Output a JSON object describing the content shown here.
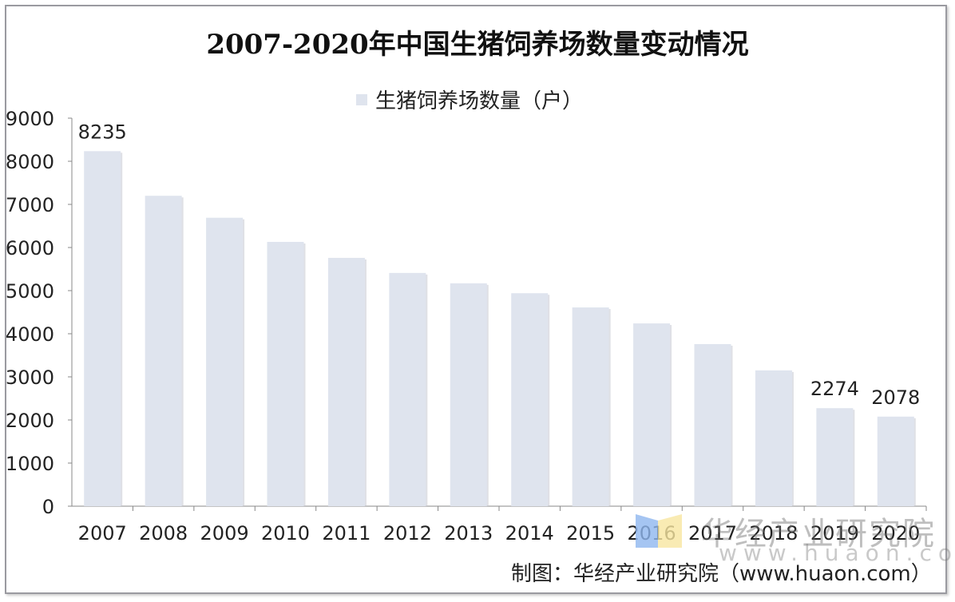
{
  "chart_data": {
    "type": "bar",
    "title": "2007-2020年中国生猪饲养场数量变动情况",
    "legend": [
      "生猪饲养场数量（户）"
    ],
    "legend_placement": "top",
    "categories": [
      "2007",
      "2008",
      "2009",
      "2010",
      "2011",
      "2012",
      "2013",
      "2014",
      "2015",
      "2016",
      "2017",
      "2018",
      "2019",
      "2020"
    ],
    "series": [
      {
        "name": "生猪饲养场数量（户）",
        "values": [
          8235,
          7200,
          6690,
          6130,
          5760,
          5410,
          5170,
          4940,
          4610,
          4240,
          3760,
          3150,
          2274,
          2078
        ]
      }
    ],
    "data_labels": {
      "2007": "8235",
      "2019": "2274",
      "2020": "2078"
    },
    "ylim": [
      0,
      9000
    ],
    "yticks": [
      "0",
      "1000",
      "2000",
      "3000",
      "4000",
      "5000",
      "6000",
      "7000",
      "8000",
      "9000"
    ],
    "grid": false,
    "bar_color": "#dfe4ee"
  },
  "source": "制图：华经产业研究院（www.huaon.com）",
  "watermark": {
    "line1": "华经产业研究院",
    "line2": "www.huaon.com"
  }
}
